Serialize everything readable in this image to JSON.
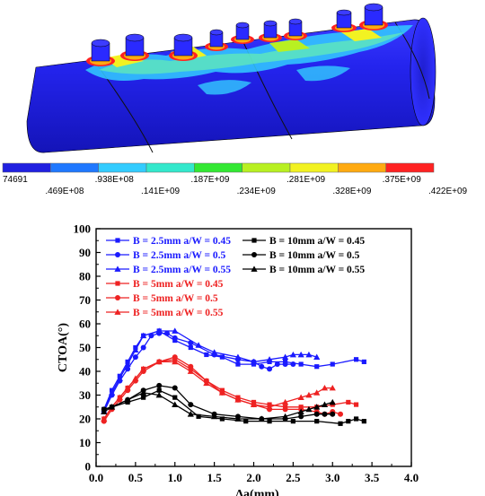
{
  "fea_image": {
    "colorbar": {
      "colors": [
        "#2020e0",
        "#1f78ff",
        "#33ccff",
        "#33e8cc",
        "#33e833",
        "#b8f022",
        "#f2f222",
        "#ffaa11",
        "#ff2222"
      ],
      "labels_top": [
        "74691",
        ".938E+08",
        ".187E+09",
        ".281E+09",
        ".375E+09"
      ],
      "labels_bottom": [
        ".469E+08",
        ".141E+09",
        ".234E+09",
        ".328E+09",
        ".422E+09"
      ]
    },
    "colors": {
      "body": "#1f1fe0",
      "pipe": "#2a2aff",
      "hot": "#ff2a2a",
      "warm": "#ffcc22"
    }
  },
  "chart_data": {
    "type": "line",
    "xlabel": "Δa(mm)",
    "ylabel": "CTOA(°)",
    "xlim": [
      0.0,
      4.0
    ],
    "ylim": [
      0,
      100
    ],
    "xticks": [
      "0.0",
      "0.5",
      "1.0",
      "1.5",
      "2.0",
      "2.5",
      "3.0",
      "3.5",
      "4.0"
    ],
    "yticks": [
      "0",
      "10",
      "20",
      "30",
      "40",
      "50",
      "60",
      "70",
      "80",
      "90",
      "100"
    ],
    "grid": false,
    "legend_placement": "top-left",
    "series": [
      {
        "name": "B = 2.5mm  a/W = 0.45",
        "color": "#1a1aff",
        "marker": "square",
        "x": [
          0.1,
          0.2,
          0.3,
          0.4,
          0.5,
          0.6,
          0.8,
          1.0,
          1.2,
          1.4,
          1.6,
          1.8,
          2.0,
          2.2,
          2.4,
          2.6,
          2.8,
          3.0,
          3.3,
          3.4
        ],
        "y": [
          24,
          32,
          38,
          44,
          50,
          55,
          57,
          53,
          50,
          47,
          46,
          43,
          43,
          44,
          44,
          43,
          42,
          43,
          45,
          44
        ]
      },
      {
        "name": "B = 2.5mm  a/W = 0.5",
        "color": "#1a1aff",
        "marker": "circle",
        "x": [
          0.1,
          0.2,
          0.3,
          0.4,
          0.5,
          0.6,
          0.7,
          0.8,
          0.9,
          1.0,
          1.2,
          1.5,
          1.8,
          2.0,
          2.1,
          2.2,
          2.3,
          2.4,
          2.5
        ],
        "y": [
          23,
          30,
          36,
          41,
          46,
          50,
          55,
          56,
          56,
          54,
          52,
          47,
          45,
          44,
          42,
          41,
          43,
          43,
          43
        ]
      },
      {
        "name": "B = 2.5mm  a/W = 0.55",
        "color": "#1a1aff",
        "marker": "triangle",
        "x": [
          0.1,
          0.2,
          0.3,
          0.4,
          0.5,
          0.6,
          0.8,
          1.0,
          1.3,
          1.5,
          1.8,
          2.0,
          2.2,
          2.4,
          2.5,
          2.6,
          2.7,
          2.8
        ],
        "y": [
          23,
          31,
          37,
          43,
          49,
          55,
          57,
          57,
          51,
          48,
          46,
          44,
          45,
          46,
          47,
          47,
          47,
          46
        ]
      },
      {
        "name": "B = 5mm    a/W = 0.45",
        "color": "#ee2222",
        "marker": "square",
        "x": [
          0.1,
          0.2,
          0.3,
          0.4,
          0.6,
          0.8,
          1.0,
          1.2,
          1.4,
          1.6,
          1.8,
          2.0,
          2.2,
          2.4,
          2.6,
          2.8,
          3.0,
          3.2,
          3.3
        ],
        "y": [
          20,
          25,
          29,
          33,
          41,
          44,
          45,
          41,
          36,
          32,
          29,
          27,
          26,
          25,
          25,
          25,
          26,
          27,
          26
        ]
      },
      {
        "name": "B = 5mm    a/W = 0.5",
        "color": "#ee2222",
        "marker": "circle",
        "x": [
          0.1,
          0.2,
          0.3,
          0.4,
          0.5,
          0.6,
          0.8,
          1.0,
          1.2,
          1.4,
          1.6,
          1.8,
          2.0,
          2.2,
          2.4,
          2.6,
          2.8,
          2.9,
          3.0,
          3.1
        ],
        "y": [
          19,
          24,
          28,
          32,
          36,
          40,
          44,
          46,
          42,
          36,
          31,
          28,
          26,
          24,
          24,
          24,
          23,
          22,
          23,
          22
        ]
      },
      {
        "name": "B = 5mm    a/W = 0.55",
        "color": "#ee2222",
        "marker": "triangle",
        "x": [
          0.1,
          0.2,
          0.3,
          0.4,
          0.5,
          0.6,
          0.8,
          1.0,
          1.2,
          1.4,
          1.6,
          1.8,
          2.0,
          2.2,
          2.4,
          2.6,
          2.7,
          2.8,
          2.9,
          3.0
        ],
        "y": [
          20,
          25,
          29,
          33,
          37,
          41,
          44,
          44,
          40,
          35,
          31,
          28,
          26,
          25,
          27,
          29,
          30,
          31,
          33,
          33
        ]
      },
      {
        "name": "B = 10mm  a/W = 0.45",
        "color": "#000000",
        "marker": "square",
        "x": [
          0.1,
          0.2,
          0.4,
          0.6,
          0.8,
          1.0,
          1.3,
          1.6,
          1.9,
          2.2,
          2.5,
          2.8,
          3.1,
          3.2,
          3.3,
          3.4
        ],
        "y": [
          24,
          25,
          27,
          29,
          32,
          29,
          21,
          20,
          19,
          19,
          19,
          19,
          18,
          19,
          20,
          19
        ]
      },
      {
        "name": "B = 10mm  a/W = 0.5",
        "color": "#000000",
        "marker": "circle",
        "x": [
          0.1,
          0.2,
          0.4,
          0.6,
          0.8,
          1.0,
          1.2,
          1.5,
          1.8,
          2.1,
          2.4,
          2.6,
          2.8,
          2.9,
          3.0
        ],
        "y": [
          24,
          25,
          28,
          32,
          34,
          33,
          26,
          22,
          21,
          20,
          20,
          21,
          22,
          22,
          22
        ]
      },
      {
        "name": "B = 10mm  a/W = 0.55",
        "color": "#000000",
        "marker": "triangle",
        "x": [
          0.1,
          0.2,
          0.4,
          0.6,
          0.8,
          1.0,
          1.2,
          1.5,
          1.8,
          2.1,
          2.4,
          2.6,
          2.7,
          2.8,
          2.9,
          3.0
        ],
        "y": [
          23,
          25,
          28,
          31,
          30,
          26,
          22,
          21,
          20,
          20,
          21,
          23,
          24,
          25,
          26,
          27
        ]
      }
    ]
  }
}
